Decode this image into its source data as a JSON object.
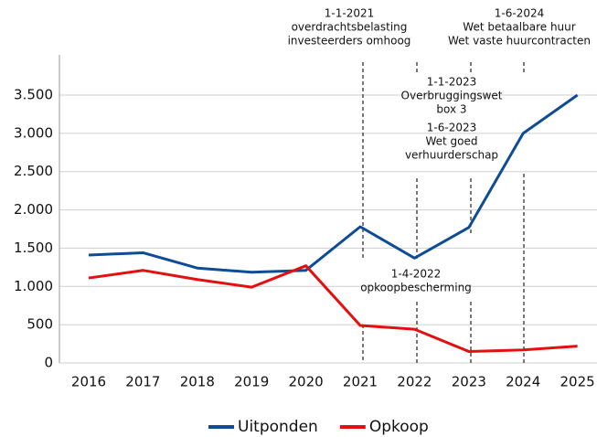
{
  "chart_data": {
    "type": "line",
    "categories": [
      "2016",
      "2017",
      "2018",
      "2019",
      "2020",
      "2021",
      "2022",
      "2023",
      "2024",
      "2025"
    ],
    "series": [
      {
        "name": "Uitponden",
        "color": "#0e4c96",
        "values": [
          1410,
          1440,
          1240,
          1185,
          1210,
          1780,
          1370,
          1770,
          3000,
          3500
        ]
      },
      {
        "name": "Opkoop",
        "color": "#e3100f",
        "values": [
          1110,
          1210,
          1090,
          990,
          1270,
          490,
          440,
          150,
          170,
          220
        ]
      }
    ],
    "ylim": [
      0,
      3500
    ],
    "yticks": [
      0,
      500,
      {
        "value": 1000,
        "label": "1.000"
      },
      {
        "value": 1500,
        "label": "1.500"
      },
      {
        "value": 2000,
        "label": "2.000"
      },
      {
        "value": 2500,
        "label": "2.500"
      },
      {
        "value": 3000,
        "label": "3.000"
      },
      {
        "value": 3500,
        "label": "3.500"
      }
    ],
    "grid": true,
    "legend": "bottom",
    "annotations": [
      {
        "lines": [
          "1-1-2021",
          "overdrachtsbelasting",
          "investeerders omhoog"
        ]
      },
      {
        "lines": [
          "1-6-2024",
          "Wet betaalbare huur",
          "Wet vaste huurcontracten"
        ]
      },
      {
        "lines": [
          "1-1-2023",
          "Overbruggingswet",
          "box 3"
        ]
      },
      {
        "lines": [
          "1-6-2023",
          "Wet goed",
          "verhuurderschap"
        ]
      },
      {
        "lines": [
          "1-4-2022",
          "opkoopbescherming"
        ]
      }
    ]
  }
}
